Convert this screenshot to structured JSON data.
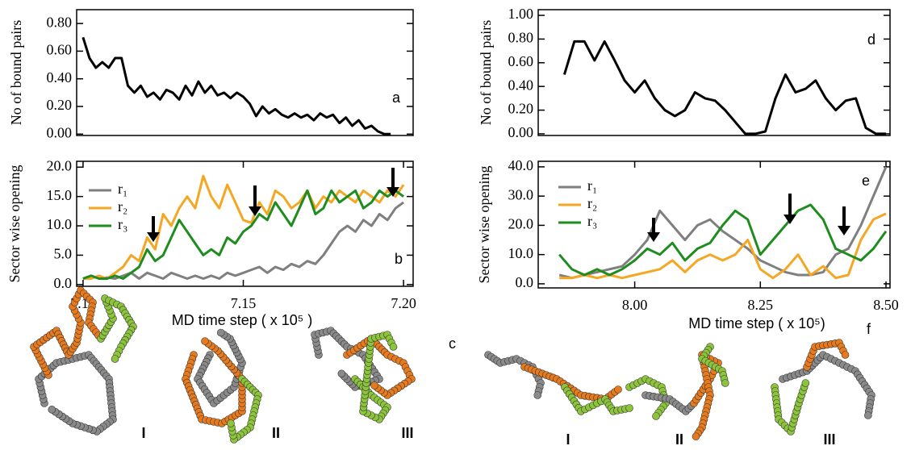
{
  "chart_data": [
    {
      "type": "line",
      "annotation": "a",
      "ylabel": "No of bound pairs",
      "xlim": [
        7.098,
        7.203
      ],
      "ylim": [
        -0.01,
        0.9
      ],
      "yticks": [
        {
          "value": 0,
          "label": "0.00"
        },
        {
          "value": 0.2,
          "label": "0.20"
        },
        {
          "value": 0.4,
          "label": "0.40"
        },
        {
          "value": 0.6,
          "label": "0.60"
        },
        {
          "value": 0.8,
          "label": "0.80"
        }
      ],
      "x": [
        7.1,
        7.102,
        7.104,
        7.106,
        7.108,
        7.11,
        7.112,
        7.114,
        7.116,
        7.118,
        7.12,
        7.122,
        7.124,
        7.126,
        7.128,
        7.13,
        7.132,
        7.134,
        7.136,
        7.138,
        7.14,
        7.142,
        7.144,
        7.146,
        7.148,
        7.15,
        7.152,
        7.154,
        7.156,
        7.158,
        7.16,
        7.162,
        7.164,
        7.166,
        7.168,
        7.17,
        7.172,
        7.174,
        7.176,
        7.178,
        7.18,
        7.182,
        7.184,
        7.186,
        7.188,
        7.19,
        7.192,
        7.194,
        7.196
      ],
      "series": [
        {
          "color": "#000000",
          "values": [
            0.7,
            0.55,
            0.48,
            0.52,
            0.48,
            0.55,
            0.55,
            0.35,
            0.3,
            0.35,
            0.27,
            0.3,
            0.25,
            0.32,
            0.3,
            0.25,
            0.35,
            0.28,
            0.38,
            0.3,
            0.35,
            0.28,
            0.3,
            0.26,
            0.3,
            0.27,
            0.22,
            0.13,
            0.2,
            0.15,
            0.18,
            0.14,
            0.12,
            0.15,
            0.12,
            0.14,
            0.1,
            0.15,
            0.12,
            0.14,
            0.08,
            0.12,
            0.06,
            0.1,
            0.04,
            0.06,
            0.02,
            0.0,
            0.0
          ]
        }
      ]
    },
    {
      "type": "line",
      "annotation": "b",
      "ylabel": "Sector wise opening",
      "xlabel": "MD time step ( x 10⁵ )",
      "legend": "upper left",
      "xlim": [
        7.098,
        7.203
      ],
      "ylim": [
        -0.3,
        21
      ],
      "xticks": [
        {
          "value": 7.1,
          "label": "7.10"
        },
        {
          "value": 7.15,
          "label": "7.15"
        },
        {
          "value": 7.2,
          "label": "7.20"
        }
      ],
      "yticks": [
        {
          "value": 0,
          "label": "0.0"
        },
        {
          "value": 5,
          "label": "5.0"
        },
        {
          "value": 10,
          "label": "10.0"
        },
        {
          "value": 15,
          "label": "15.0"
        },
        {
          "value": 20,
          "label": "20.0"
        }
      ],
      "x": [
        7.1,
        7.1025,
        7.105,
        7.1075,
        7.11,
        7.1125,
        7.115,
        7.1175,
        7.12,
        7.1225,
        7.125,
        7.1275,
        7.13,
        7.1325,
        7.135,
        7.1375,
        7.14,
        7.1425,
        7.145,
        7.1475,
        7.15,
        7.1525,
        7.155,
        7.1575,
        7.16,
        7.1625,
        7.165,
        7.1675,
        7.17,
        7.1725,
        7.175,
        7.1775,
        7.18,
        7.1825,
        7.185,
        7.1875,
        7.19,
        7.1925,
        7.195,
        7.1975,
        7.2
      ],
      "series": [
        {
          "name": "r₁",
          "color": "#7f7f7f",
          "values": [
            1.0,
            1.5,
            1.0,
            1.2,
            1.0,
            1.5,
            2.0,
            1.0,
            2.0,
            1.5,
            1.0,
            2.0,
            1.5,
            1.0,
            1.5,
            1.0,
            1.5,
            1.0,
            2.0,
            1.5,
            2.0,
            2.5,
            3.0,
            2.0,
            3.0,
            2.5,
            3.5,
            3.0,
            4.0,
            3.5,
            5.0,
            7.0,
            9.0,
            10.0,
            9.0,
            11.0,
            10.0,
            12.0,
            11.0,
            13.0,
            14.0
          ]
        },
        {
          "name": "r₂",
          "color": "#f5a623",
          "values": [
            1.0,
            1.0,
            1.5,
            1.0,
            2.0,
            3.0,
            5.0,
            4.0,
            8.0,
            6.0,
            12.0,
            10.0,
            13.0,
            15.0,
            13.0,
            18.5,
            15.0,
            13.0,
            17.0,
            14.0,
            11.0,
            10.5,
            14.0,
            12.0,
            16.0,
            15.0,
            13.0,
            14.0,
            16.0,
            13.0,
            15.0,
            14.0,
            16.0,
            15.0,
            14.0,
            16.0,
            15.0,
            14.0,
            16.0,
            15.0,
            17.0
          ]
        },
        {
          "name": "r₃",
          "color": "#1e8c1e",
          "values": [
            1.0,
            1.5,
            1.0,
            1.0,
            1.5,
            1.0,
            2.0,
            3.0,
            6.0,
            4.0,
            5.0,
            8.0,
            11.0,
            9.0,
            7.0,
            5.0,
            6.0,
            5.0,
            8.0,
            7.0,
            9.0,
            10.0,
            12.0,
            11.0,
            14.0,
            12.0,
            10.0,
            13.0,
            16.0,
            12.0,
            13.0,
            16.0,
            14.0,
            15.0,
            16.0,
            13.0,
            14.0,
            16.0,
            15.0,
            16.0,
            15.0
          ]
        }
      ]
    },
    {
      "type": "line",
      "annotation": "d",
      "ylabel": "No of bound pairs",
      "xlim": [
        7.808,
        8.508
      ],
      "ylim": [
        -0.014,
        1.048
      ],
      "yticks": [
        {
          "value": 0,
          "label": "0.00"
        },
        {
          "value": 0.2,
          "label": "0.20"
        },
        {
          "value": 0.4,
          "label": "0.40"
        },
        {
          "value": 0.6,
          "label": "0.60"
        },
        {
          "value": 0.8,
          "label": "0.80"
        },
        {
          "value": 1,
          "label": "1.00"
        }
      ],
      "x": [
        7.86,
        7.88,
        7.9,
        7.92,
        7.94,
        7.96,
        7.98,
        8.0,
        8.02,
        8.04,
        8.06,
        8.08,
        8.1,
        8.12,
        8.14,
        8.16,
        8.18,
        8.2,
        8.22,
        8.24,
        8.26,
        8.28,
        8.3,
        8.32,
        8.34,
        8.36,
        8.38,
        8.4,
        8.42,
        8.44,
        8.46,
        8.48,
        8.5
      ],
      "series": [
        {
          "color": "#000000",
          "values": [
            0.5,
            0.78,
            0.78,
            0.62,
            0.78,
            0.62,
            0.45,
            0.35,
            0.45,
            0.3,
            0.2,
            0.15,
            0.2,
            0.35,
            0.3,
            0.28,
            0.2,
            0.1,
            0.0,
            0.0,
            0.02,
            0.3,
            0.5,
            0.35,
            0.38,
            0.45,
            0.3,
            0.2,
            0.28,
            0.3,
            0.05,
            0.0,
            0.0
          ]
        }
      ]
    },
    {
      "type": "line",
      "annotation": "e",
      "ylabel": "Sector wise opening",
      "xlabel": "MD time step ( x 10⁵)",
      "legend": "upper left",
      "xlim": [
        7.808,
        8.508
      ],
      "ylim": [
        -1.4,
        41.9
      ],
      "xticks": [
        {
          "value": 8,
          "label": "8.00"
        },
        {
          "value": 8.25,
          "label": "8.25"
        },
        {
          "value": 8.5,
          "label": "8.50"
        }
      ],
      "yticks": [
        {
          "value": 0,
          "label": "0.0"
        },
        {
          "value": 10,
          "label": "10.0"
        },
        {
          "value": 20,
          "label": "20.0"
        },
        {
          "value": 30,
          "label": "30.0"
        },
        {
          "value": 40,
          "label": "40.0"
        }
      ],
      "x": [
        7.85,
        7.875,
        7.9,
        7.925,
        7.95,
        7.975,
        8.0,
        8.025,
        8.05,
        8.075,
        8.1,
        8.125,
        8.15,
        8.175,
        8.2,
        8.225,
        8.25,
        8.275,
        8.3,
        8.325,
        8.35,
        8.375,
        8.4,
        8.425,
        8.45,
        8.475,
        8.5
      ],
      "series": [
        {
          "name": "r₁",
          "color": "#7f7f7f",
          "values": [
            3,
            2,
            3,
            4,
            5,
            6,
            10,
            15,
            25,
            20,
            15,
            20,
            22,
            18,
            15,
            12,
            8,
            6,
            4,
            3,
            3,
            4,
            10,
            12,
            20,
            30,
            40
          ]
        },
        {
          "name": "r₂",
          "color": "#f5a623",
          "values": [
            2,
            2,
            3,
            2,
            3,
            2,
            3,
            4,
            5,
            8,
            4,
            8,
            10,
            8,
            10,
            15,
            5,
            2,
            5,
            10,
            3,
            6,
            2,
            3,
            15,
            22,
            24
          ]
        },
        {
          "name": "r₃",
          "color": "#1e8c1e",
          "values": [
            10,
            5,
            3,
            5,
            3,
            5,
            8,
            12,
            10,
            14,
            8,
            12,
            14,
            20,
            25,
            22,
            10,
            15,
            20,
            25,
            27,
            22,
            12,
            10,
            8,
            12,
            18
          ]
        }
      ]
    }
  ],
  "structures": [
    {
      "panel": "c",
      "labels": [
        "I",
        "II",
        "III"
      ]
    },
    {
      "panel": "f",
      "labels": [
        "I",
        "II",
        "III"
      ]
    }
  ]
}
